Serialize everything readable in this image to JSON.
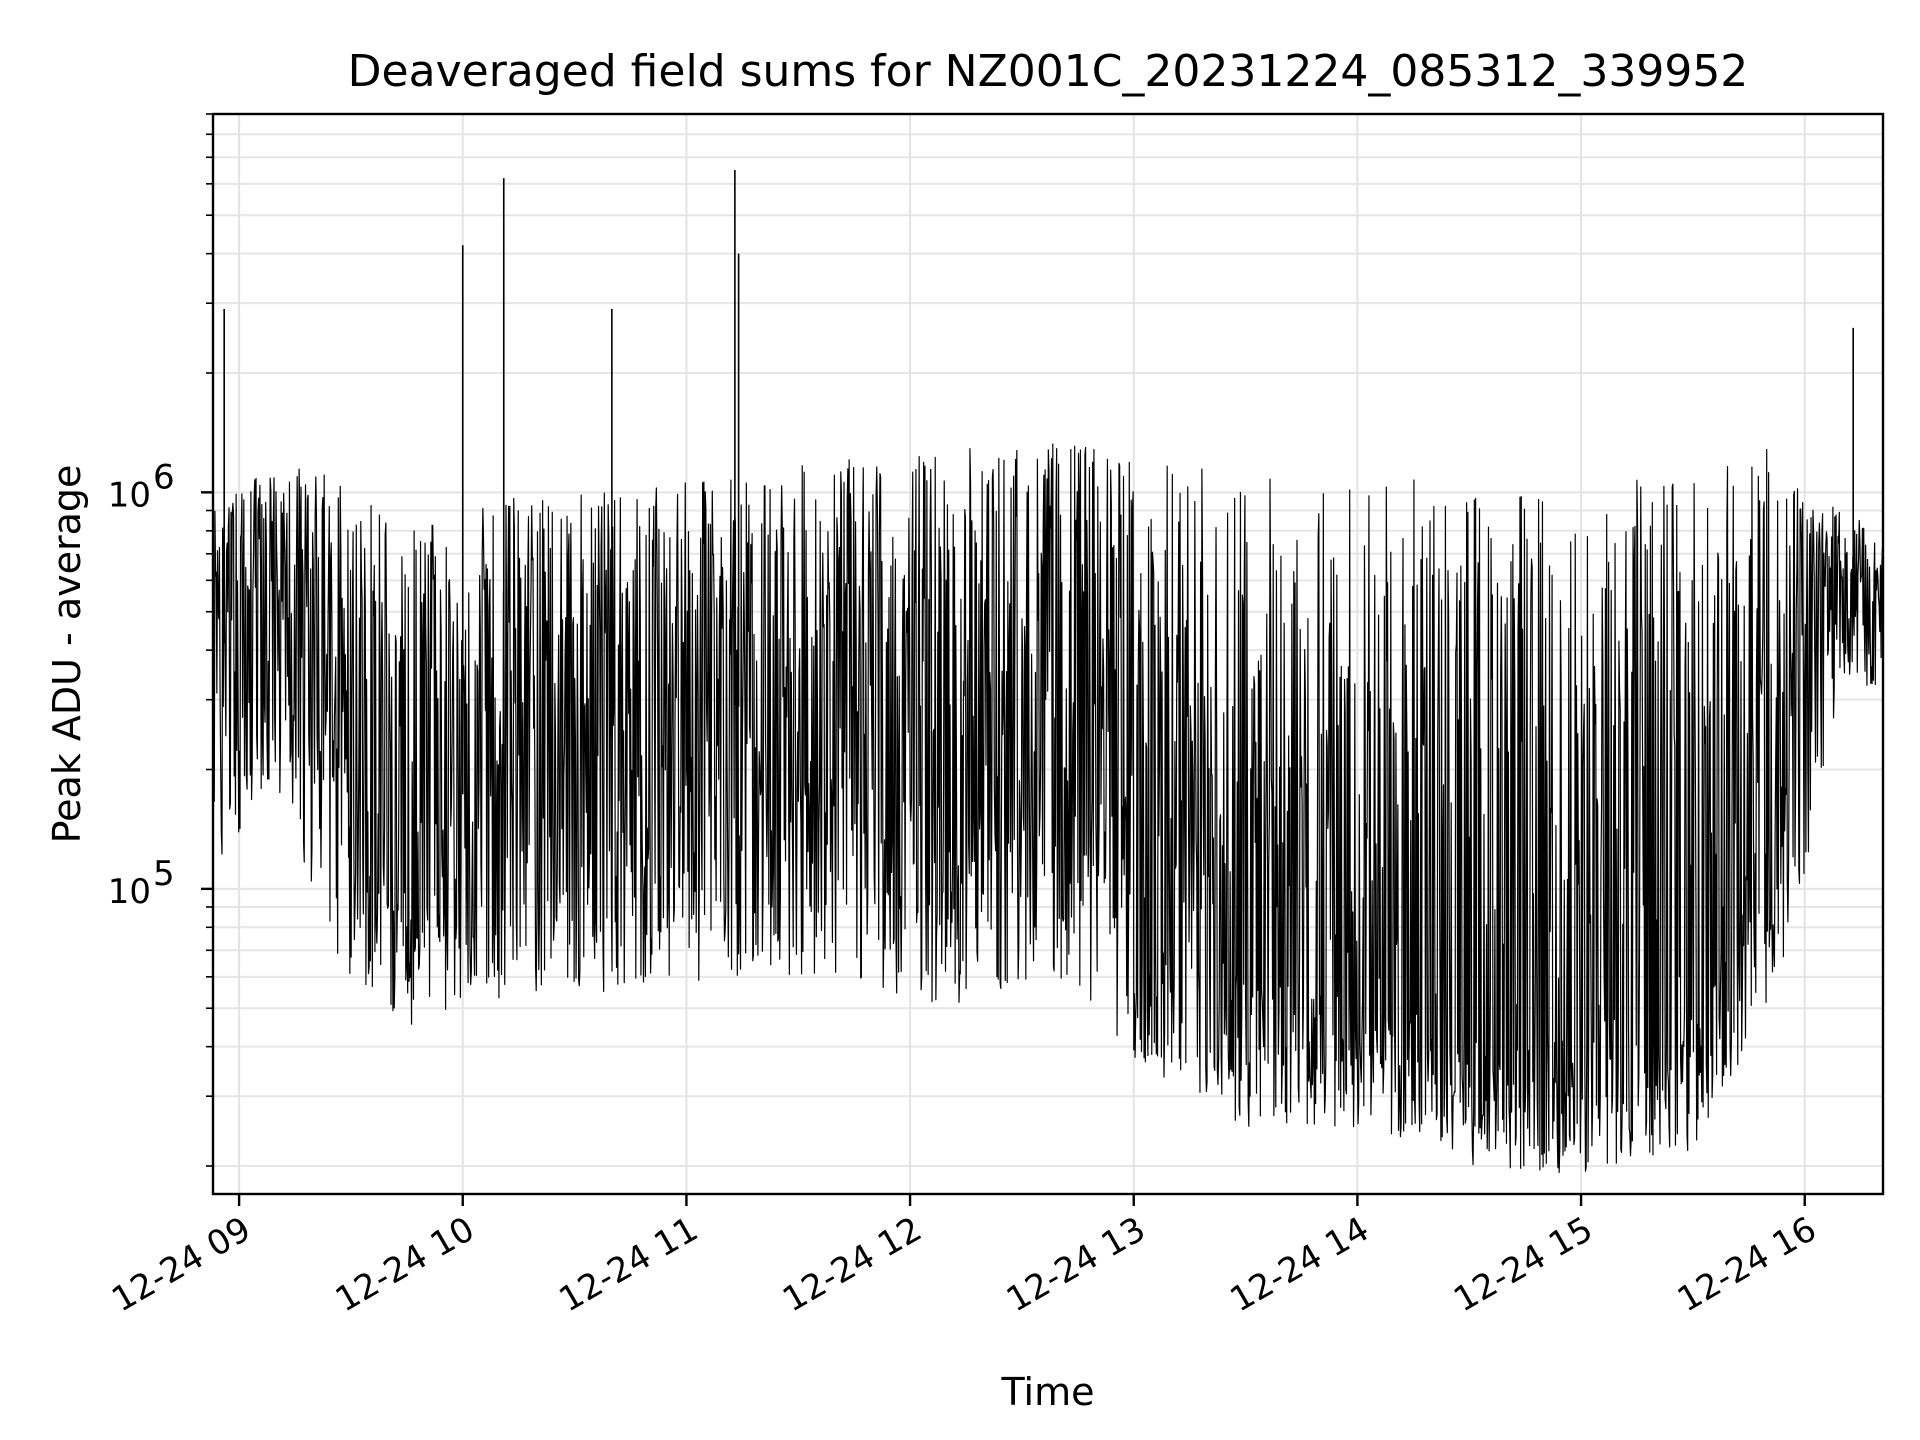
{
  "chart_data": {
    "type": "line",
    "title": "Deaveraged field sums for NZ001C_20231224_085312_339952",
    "xlabel": "Time",
    "ylabel": "Peak ADU - average",
    "yscale": "log",
    "xlim": [
      "2023-12-24 08:53",
      "2023-12-24 16:21"
    ],
    "ylim": [
      17000,
      9000000
    ],
    "grid": "on (major and minor)",
    "x_ticks": [
      {
        "label": "12-24 09",
        "value": "2023-12-24 09:00"
      },
      {
        "label": "12-24 10",
        "value": "2023-12-24 10:00"
      },
      {
        "label": "12-24 11",
        "value": "2023-12-24 11:00"
      },
      {
        "label": "12-24 12",
        "value": "2023-12-24 12:00"
      },
      {
        "label": "12-24 13",
        "value": "2023-12-24 13:00"
      },
      {
        "label": "12-24 14",
        "value": "2023-12-24 14:00"
      },
      {
        "label": "12-24 15",
        "value": "2023-12-24 15:00"
      },
      {
        "label": "12-24 16",
        "value": "2023-12-24 16:00"
      }
    ],
    "y_ticks": [
      {
        "base": "10",
        "exp": "5",
        "value": 100000
      },
      {
        "base": "10",
        "exp": "6",
        "value": 1000000
      }
    ],
    "series": [
      {
        "color": "#000000",
        "spikes": [
          {
            "time": "2023-12-24 08:56",
            "value": 2900000
          },
          {
            "time": "2023-12-24 10:00",
            "value": 4200000
          },
          {
            "time": "2023-12-24 10:11",
            "value": 6200000
          },
          {
            "time": "2023-12-24 10:40",
            "value": 2900000
          },
          {
            "time": "2023-12-24 11:13",
            "value": 6500000
          },
          {
            "time": "2023-12-24 11:14",
            "value": 4000000
          },
          {
            "time": "2023-12-24 16:13",
            "value": 2600000
          }
        ],
        "envelope": [
          {
            "time": "2023-12-24 08:53",
            "median": 400000,
            "low": 110000,
            "high": 900000
          },
          {
            "time": "2023-12-24 09:10",
            "median": 500000,
            "low": 180000,
            "high": 1200000
          },
          {
            "time": "2023-12-24 09:30",
            "median": 220000,
            "low": 55000,
            "high": 1100000
          },
          {
            "time": "2023-12-24 09:45",
            "median": 150000,
            "low": 45000,
            "high": 800000
          },
          {
            "time": "2023-12-24 10:15",
            "median": 200000,
            "low": 55000,
            "high": 1000000
          },
          {
            "time": "2023-12-24 10:45",
            "median": 250000,
            "low": 55000,
            "high": 1000000
          },
          {
            "time": "2023-12-24 11:10",
            "median": 300000,
            "low": 60000,
            "high": 1100000
          },
          {
            "time": "2023-12-24 11:40",
            "median": 220000,
            "low": 60000,
            "high": 1200000
          },
          {
            "time": "2023-12-24 12:10",
            "median": 180000,
            "low": 50000,
            "high": 1300000
          },
          {
            "time": "2023-12-24 12:40",
            "median": 220000,
            "low": 60000,
            "high": 1350000
          },
          {
            "time": "2023-12-24 12:58",
            "median": 180000,
            "low": 40000,
            "high": 1300000
          },
          {
            "time": "2023-12-24 13:05",
            "median": 90000,
            "low": 30000,
            "high": 1200000
          },
          {
            "time": "2023-12-24 13:30",
            "median": 60000,
            "low": 25000,
            "high": 1150000
          },
          {
            "time": "2023-12-24 14:00",
            "median": 55000,
            "low": 25000,
            "high": 1100000
          },
          {
            "time": "2023-12-24 14:30",
            "median": 45000,
            "low": 20000,
            "high": 1050000
          },
          {
            "time": "2023-12-24 15:00",
            "median": 45000,
            "low": 19000,
            "high": 1050000
          },
          {
            "time": "2023-12-24 15:30",
            "median": 55000,
            "low": 22000,
            "high": 1100000
          },
          {
            "time": "2023-12-24 15:50",
            "median": 120000,
            "low": 50000,
            "high": 1300000
          },
          {
            "time": "2023-12-24 16:00",
            "median": 300000,
            "low": 90000,
            "high": 1000000
          },
          {
            "time": "2023-12-24 16:10",
            "median": 600000,
            "low": 350000,
            "high": 900000
          },
          {
            "time": "2023-12-24 16:21",
            "median": 500000,
            "low": 300000,
            "high": 800000
          }
        ]
      }
    ]
  }
}
